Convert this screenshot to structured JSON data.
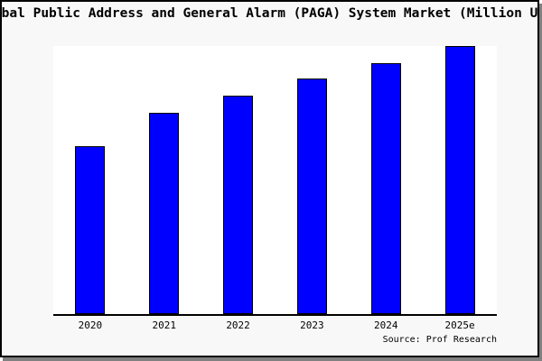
{
  "title": "Global Public Address and General Alarm (PAGA) System Market (Million USD)",
  "source": "Source: Prof Research",
  "colors": {
    "bar_fill": "#0000ff",
    "bar_border": "#000000",
    "figure_bg": "#f8f8f8",
    "plot_bg": "#ffffff",
    "axis_line": "#000000",
    "frame_border": "#000000",
    "frame_shadow": "#808080",
    "text": "#000000"
  },
  "chart_data": {
    "type": "bar",
    "categories": [
      "2020",
      "2021",
      "2022",
      "2023",
      "2024",
      "2025e"
    ],
    "values": [
      62.5,
      75.1,
      81.5,
      87.8,
      93.6,
      100
    ],
    "title": "Global Public Address and General Alarm (PAGA) System Market (Million USD)",
    "xlabel": "",
    "ylabel": "",
    "ylim": [
      0,
      100
    ],
    "grid": false,
    "legend": false,
    "annotations": [
      "Source: Prof Research"
    ]
  }
}
